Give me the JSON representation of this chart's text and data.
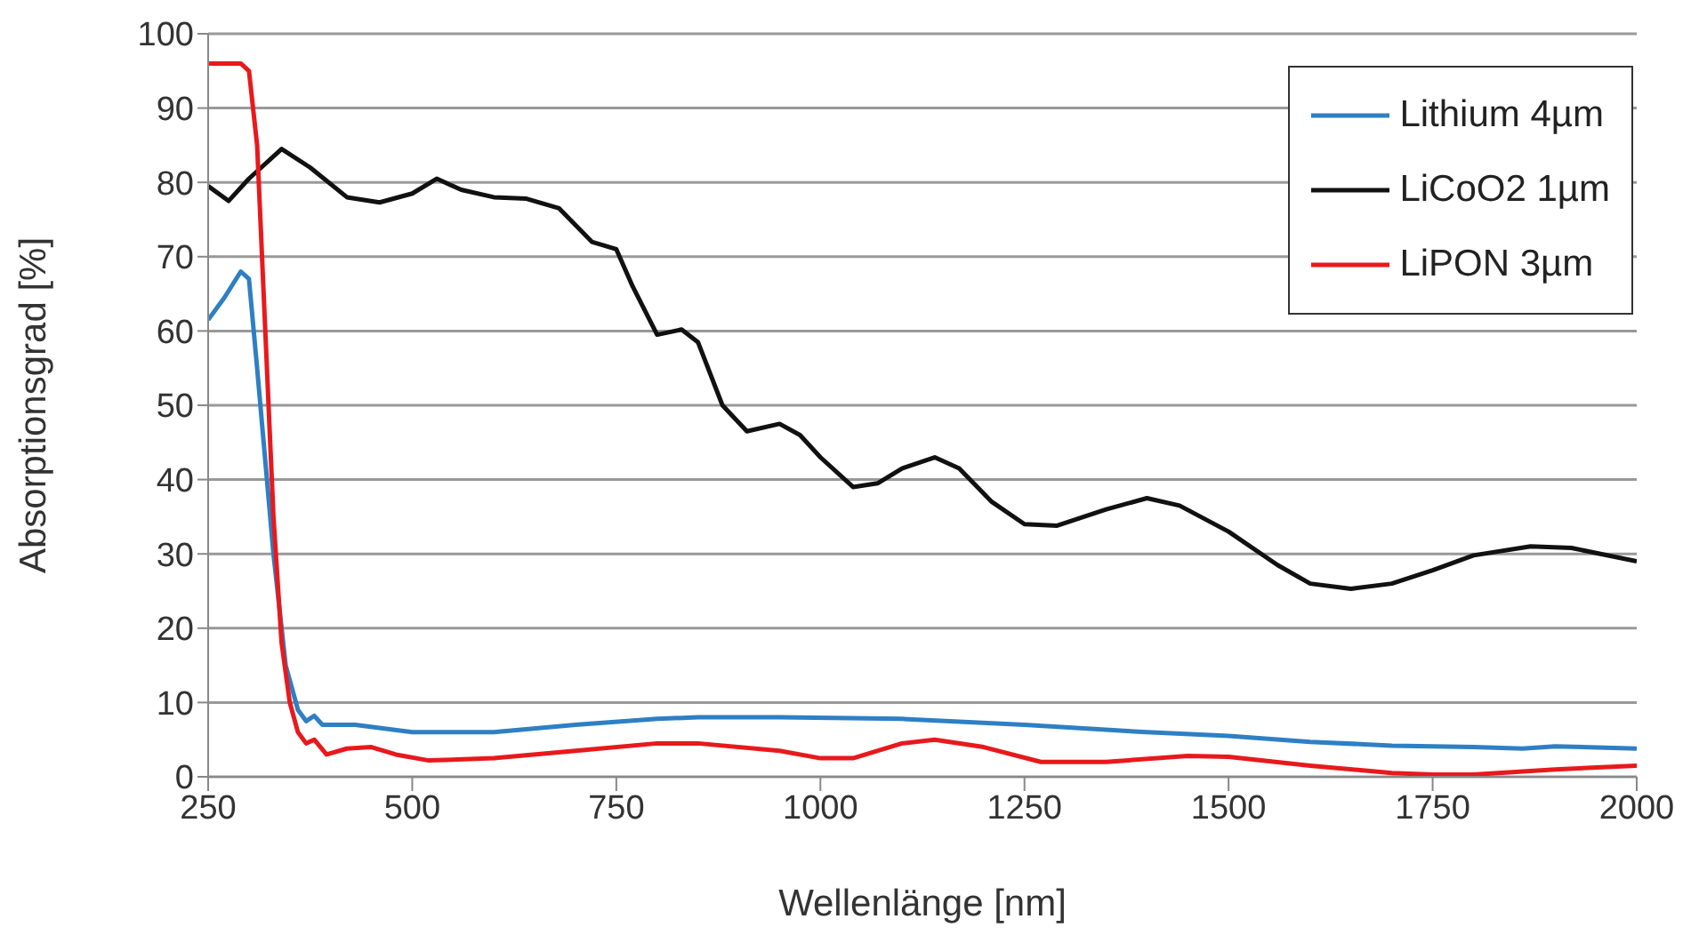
{
  "chart_data": {
    "type": "line",
    "xlabel": "Wellenlänge [nm]",
    "ylabel": "Absorptionsgrad [%]",
    "xlim": [
      250,
      2000
    ],
    "xticks": [
      250,
      500,
      750,
      1000,
      1250,
      1500,
      1750,
      2000
    ],
    "ylim": [
      0,
      100
    ],
    "yticks": [
      0,
      10,
      20,
      30,
      40,
      50,
      60,
      70,
      80,
      90,
      100
    ],
    "grid": "y",
    "legend": "top right",
    "marker": "none",
    "line_style": "solid",
    "series": [
      {
        "name": "Lithium 4µm",
        "color": "#2e7fc4",
        "x": [
          250,
          270,
          290,
          300,
          310,
          330,
          345,
          360,
          370,
          380,
          390,
          430,
          500,
          600,
          700,
          800,
          850,
          950,
          1100,
          1250,
          1400,
          1500,
          1600,
          1700,
          1800,
          1860,
          1900,
          2000
        ],
        "values": [
          61.5,
          64.5,
          68,
          67,
          55,
          30,
          15,
          9,
          7.5,
          8.2,
          7,
          7,
          6,
          6,
          7,
          7.8,
          8,
          8,
          7.8,
          7,
          6,
          5.5,
          4.7,
          4.2,
          4,
          3.8,
          4.1,
          3.8
        ]
      },
      {
        "name": "LiCoO2 1µm",
        "color": "#111111",
        "x": [
          250,
          275,
          300,
          340,
          375,
          420,
          460,
          500,
          530,
          560,
          600,
          640,
          680,
          720,
          750,
          770,
          800,
          830,
          850,
          880,
          910,
          950,
          975,
          1000,
          1040,
          1070,
          1100,
          1140,
          1170,
          1210,
          1250,
          1290,
          1350,
          1400,
          1440,
          1500,
          1560,
          1600,
          1650,
          1700,
          1750,
          1800,
          1870,
          1920,
          2000
        ],
        "values": [
          79.5,
          77.5,
          80.5,
          84.5,
          82,
          78,
          77.3,
          78.5,
          80.5,
          79,
          78,
          77.8,
          76.5,
          72,
          71,
          66,
          59.5,
          60.2,
          58.5,
          50,
          46.5,
          47.5,
          46,
          43,
          39,
          39.5,
          41.5,
          43,
          41.5,
          37,
          34,
          33.8,
          36,
          37.5,
          36.5,
          33,
          28.5,
          26,
          25.3,
          26,
          27.8,
          29.8,
          31,
          30.8,
          29
        ]
      },
      {
        "name": "LiPON 3µm",
        "color": "#e8191c",
        "x": [
          250,
          290,
          300,
          310,
          320,
          330,
          340,
          350,
          360,
          370,
          380,
          395,
          420,
          450,
          480,
          520,
          600,
          700,
          800,
          850,
          950,
          1000,
          1040,
          1100,
          1140,
          1200,
          1270,
          1350,
          1450,
          1500,
          1600,
          1700,
          1750,
          1800,
          1900,
          2000
        ],
        "values": [
          96,
          96,
          95,
          85,
          60,
          35,
          18,
          10,
          6,
          4.5,
          5,
          3,
          3.8,
          4,
          3,
          2.2,
          2.5,
          3.5,
          4.5,
          4.5,
          3.5,
          2.5,
          2.5,
          4.5,
          5,
          4,
          2,
          2,
          2.8,
          2.7,
          1.5,
          0.5,
          0.3,
          0.3,
          1,
          1.5
        ]
      }
    ]
  }
}
